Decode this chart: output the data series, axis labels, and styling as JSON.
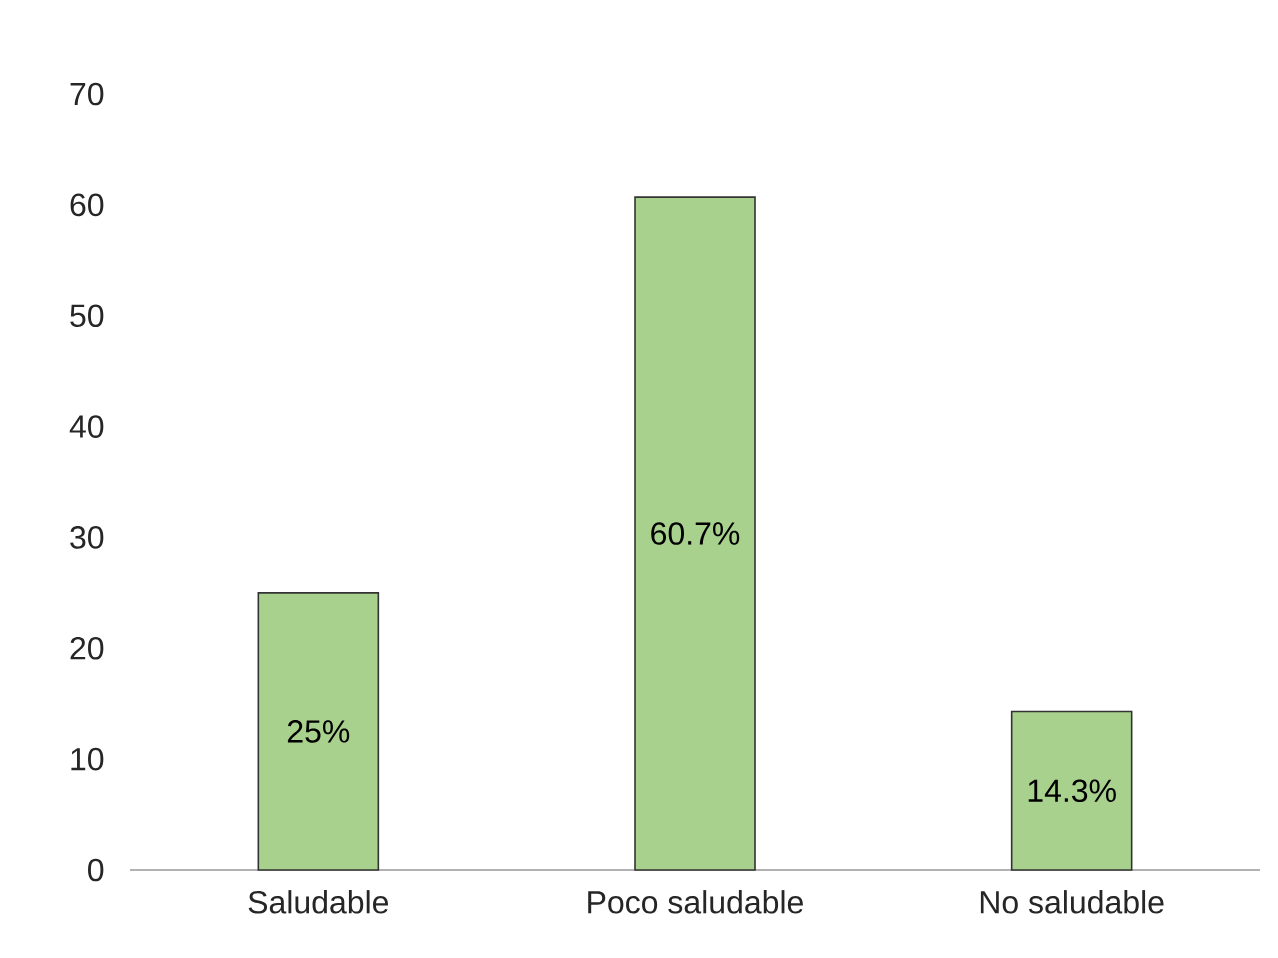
{
  "chart_data": {
    "type": "bar",
    "categories": [
      "Saludable",
      "Poco saludable",
      "No saludable"
    ],
    "values": [
      25,
      60.7,
      14.3
    ],
    "value_labels": [
      "25%",
      "60.7%",
      "14.3%"
    ],
    "color": "#a9d18e",
    "ylim": [
      0,
      70
    ],
    "yticks": [
      0,
      10,
      20,
      30,
      40,
      50,
      60,
      70
    ],
    "grid": false
  }
}
